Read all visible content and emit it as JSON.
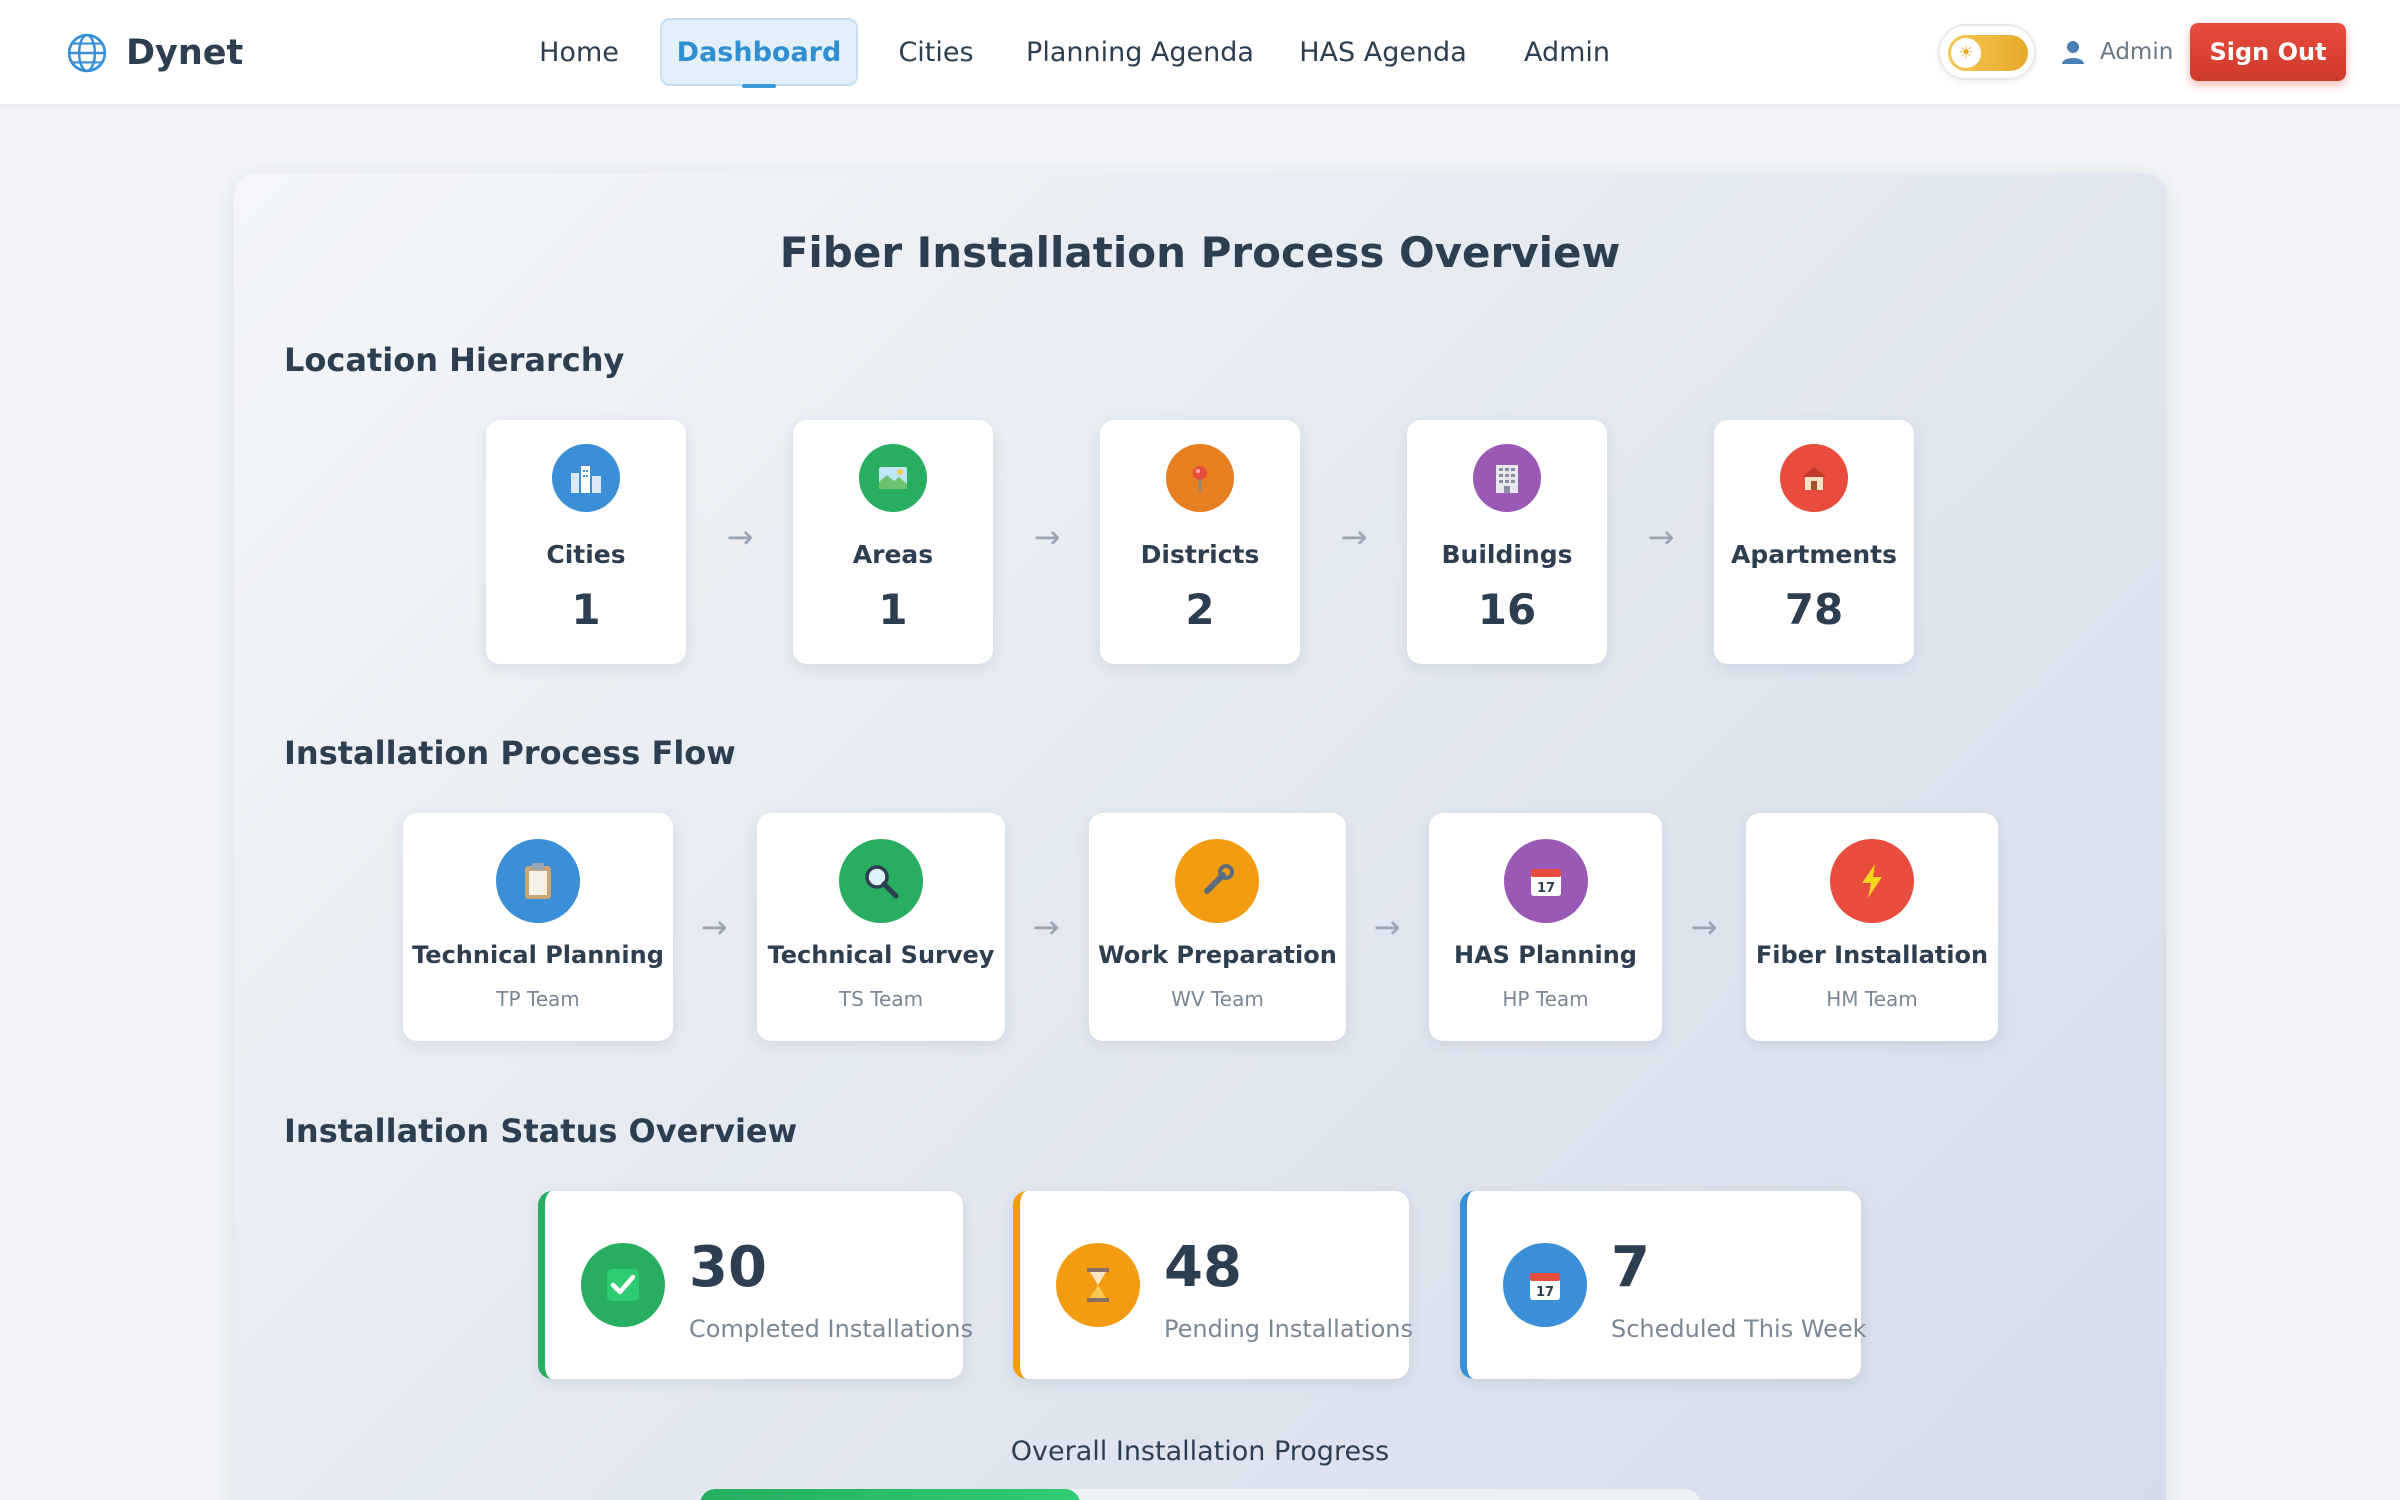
{
  "brand": {
    "name": "Dynet"
  },
  "nav": {
    "items": [
      {
        "label": "Home",
        "active": false
      },
      {
        "label": "Dashboard",
        "active": true
      },
      {
        "label": "Cities",
        "active": false
      },
      {
        "label": "Planning Agenda",
        "active": false
      },
      {
        "label": "HAS Agenda",
        "active": false
      },
      {
        "label": "Admin",
        "active": false
      }
    ]
  },
  "user": {
    "name": "Admin",
    "theme": "light"
  },
  "signout_label": "Sign Out",
  "page_title": "Fiber Installation Process Overview",
  "location": {
    "title": "Location Hierarchy",
    "items": [
      {
        "label": "Cities",
        "value": "1",
        "icon": "city-icon",
        "color": "#3a8fd6"
      },
      {
        "label": "Areas",
        "value": "1",
        "icon": "map-icon",
        "color": "#27ae60"
      },
      {
        "label": "Districts",
        "value": "2",
        "icon": "pin-icon",
        "color": "#e67e22"
      },
      {
        "label": "Buildings",
        "value": "16",
        "icon": "building-icon",
        "color": "#9b59b6"
      },
      {
        "label": "Apartments",
        "value": "78",
        "icon": "house-icon",
        "color": "#e74c3c"
      }
    ]
  },
  "process": {
    "title": "Installation Process Flow",
    "items": [
      {
        "label": "Technical Planning",
        "team": "TP Team",
        "icon": "clipboard-icon",
        "color": "#3a8fd6"
      },
      {
        "label": "Technical Survey",
        "team": "TS Team",
        "icon": "magnifier-icon",
        "color": "#27ae60"
      },
      {
        "label": "Work Preparation",
        "team": "WV Team",
        "icon": "wrench-icon",
        "color": "#f39c12"
      },
      {
        "label": "HAS Planning",
        "team": "HP Team",
        "icon": "calendar-icon",
        "color": "#9b59b6"
      },
      {
        "label": "Fiber Installation",
        "team": "HM Team",
        "icon": "lightning-icon",
        "color": "#e74c3c"
      }
    ]
  },
  "status": {
    "title": "Installation Status Overview",
    "items": [
      {
        "value": "30",
        "label": "Completed Installations",
        "icon": "check-icon",
        "color": "#27ae60"
      },
      {
        "value": "48",
        "label": "Pending Installations",
        "icon": "hourglass-icon",
        "color": "#f39c12"
      },
      {
        "value": "7",
        "label": "Scheduled This Week",
        "icon": "calendar-icon",
        "color": "#3a8fd6"
      }
    ]
  },
  "progress": {
    "label": "Overall Installation Progress",
    "percent": 38
  }
}
